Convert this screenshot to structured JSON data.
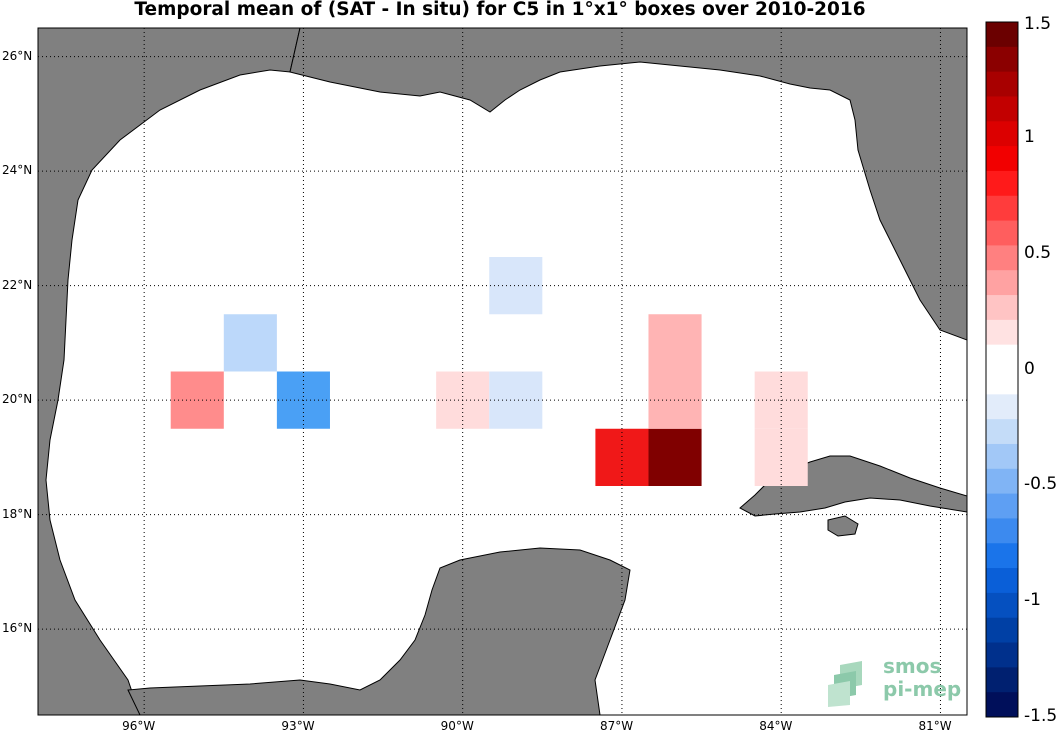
{
  "title": "Temporal mean of (SAT - In situ) for C5 in 1°x1° boxes over 2010-2016",
  "map": {
    "region": "Gulf of Mexico",
    "lon_range": [
      -98,
      -80.5
    ],
    "lat_range": [
      14.5,
      26.5
    ],
    "x_ticks": [
      -96,
      -93,
      -90,
      -87,
      -84,
      -81
    ],
    "x_tick_labels": [
      "96°W",
      "93°W",
      "90°W",
      "87°W",
      "84°W",
      "81°W"
    ],
    "y_ticks": [
      16,
      18,
      20,
      22,
      24,
      26
    ],
    "y_tick_labels": [
      "16°N",
      "18°N",
      "20°N",
      "22°N",
      "24°N",
      "26°N"
    ],
    "grid": "dotted",
    "land_color": "#808080",
    "ocean_color": "#ffffff"
  },
  "boxes": [
    {
      "lon": -95,
      "lat": 20,
      "value": 0.4
    },
    {
      "lon": -94,
      "lat": 21,
      "value": -0.2
    },
    {
      "lon": -93,
      "lat": 20,
      "value": -0.5
    },
    {
      "lon": -90,
      "lat": 20,
      "value": 0.15
    },
    {
      "lon": -89,
      "lat": 20,
      "value": -0.15
    },
    {
      "lon": -89,
      "lat": 22,
      "value": -0.15
    },
    {
      "lon": -87,
      "lat": 19,
      "value": 1.0
    },
    {
      "lon": -86,
      "lat": 19,
      "value": 1.5
    },
    {
      "lon": -86,
      "lat": 20,
      "value": 0.25
    },
    {
      "lon": -86,
      "lat": 21,
      "value": 0.25
    },
    {
      "lon": -84,
      "lat": 19,
      "value": 0.15
    },
    {
      "lon": -84,
      "lat": 20,
      "value": 0.15
    }
  ],
  "colorbar": {
    "range": [
      -1.5,
      1.5
    ],
    "ticks": [
      1.5,
      1,
      0.5,
      0,
      -0.5,
      -1,
      -1.5
    ],
    "tick_labels": [
      "1.5",
      "1",
      "0.5",
      "0",
      "-0.5",
      "-1",
      "-1.5"
    ],
    "colors": [
      "#6b0000",
      "#8b0000",
      "#a80000",
      "#c20000",
      "#dc0000",
      "#f20000",
      "#ff1a1a",
      "#ff3c3c",
      "#ff5e5e",
      "#ff8080",
      "#ffa2a2",
      "#ffc4c4",
      "#ffe2e2",
      "#ffffff",
      "#ffffff",
      "#e2ecfa",
      "#c4dcf8",
      "#a2c8f7",
      "#80b4f5",
      "#5e9ff3",
      "#3c8aef",
      "#1a74ea",
      "#0a5fd8",
      "#0550c0",
      "#0040a5",
      "#00308c",
      "#002070",
      "#000f5a"
    ]
  },
  "logo": {
    "line1": "smos",
    "line2": "pi-mep",
    "color": "#8cc9aa"
  }
}
